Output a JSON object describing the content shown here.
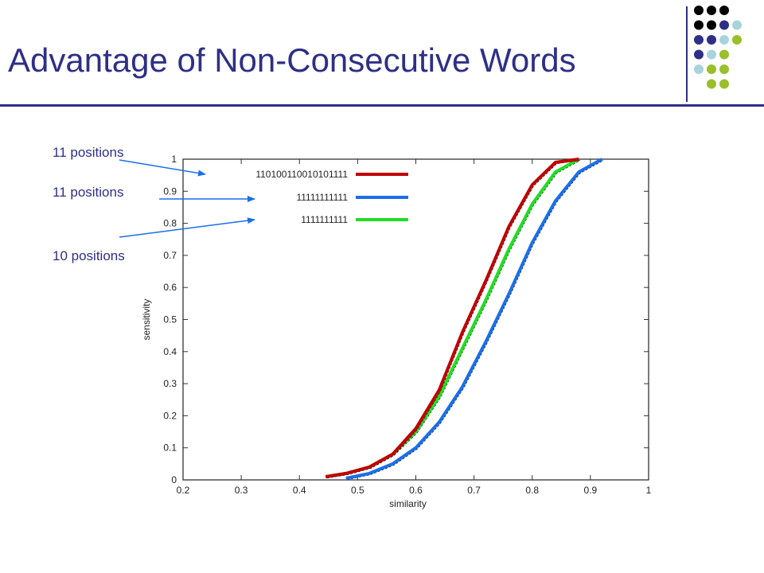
{
  "slide": {
    "title": "Advantage of Non-Consecutive Words",
    "accent_color": "#2e2f86",
    "decor_dot_colors": [
      "#000000",
      "#2e2f86",
      "#a8d3dd",
      "#99bf2a"
    ]
  },
  "annotations": [
    {
      "text": "11 positions",
      "points_to_series": 0
    },
    {
      "text": "11 positions",
      "points_to_series": 1
    },
    {
      "text": "10 positions",
      "points_to_series": 2
    }
  ],
  "chart_data": {
    "type": "line",
    "xlabel": "similarity",
    "ylabel": "sensitivity",
    "xlim": [
      0.2,
      1
    ],
    "ylim": [
      0,
      1
    ],
    "xticks": [
      "0.2",
      "0.3",
      "0.4",
      "0.5",
      "0.6",
      "0.7",
      "0.8",
      "0.9",
      "1"
    ],
    "yticks": [
      "0",
      "0.1",
      "0.2",
      "0.3",
      "0.4",
      "0.5",
      "0.6",
      "0.7",
      "0.8",
      "0.9",
      "1"
    ],
    "legend_position": "top-left",
    "grid": false,
    "series": [
      {
        "name": "110100110010101111",
        "color": "#c00000",
        "points": [
          [
            0.445,
            0.01
          ],
          [
            0.48,
            0.02
          ],
          [
            0.52,
            0.04
          ],
          [
            0.56,
            0.08
          ],
          [
            0.6,
            0.16
          ],
          [
            0.64,
            0.28
          ],
          [
            0.68,
            0.46
          ],
          [
            0.72,
            0.62
          ],
          [
            0.76,
            0.79
          ],
          [
            0.8,
            0.92
          ],
          [
            0.84,
            0.99
          ],
          [
            0.88,
            1.0
          ]
        ]
      },
      {
        "name": "11111111111",
        "color": "#1a6fe8",
        "points": [
          [
            0.48,
            0.005
          ],
          [
            0.52,
            0.02
          ],
          [
            0.56,
            0.05
          ],
          [
            0.6,
            0.1
          ],
          [
            0.64,
            0.18
          ],
          [
            0.68,
            0.29
          ],
          [
            0.72,
            0.43
          ],
          [
            0.76,
            0.58
          ],
          [
            0.8,
            0.74
          ],
          [
            0.84,
            0.87
          ],
          [
            0.88,
            0.96
          ],
          [
            0.92,
            1.0
          ]
        ]
      },
      {
        "name": "1111111111",
        "color": "#22dd22",
        "points": [
          [
            0.445,
            0.01
          ],
          [
            0.48,
            0.02
          ],
          [
            0.52,
            0.04
          ],
          [
            0.56,
            0.08
          ],
          [
            0.6,
            0.15
          ],
          [
            0.64,
            0.26
          ],
          [
            0.68,
            0.41
          ],
          [
            0.72,
            0.56
          ],
          [
            0.76,
            0.72
          ],
          [
            0.8,
            0.86
          ],
          [
            0.84,
            0.96
          ],
          [
            0.88,
            1.0
          ]
        ]
      }
    ]
  }
}
